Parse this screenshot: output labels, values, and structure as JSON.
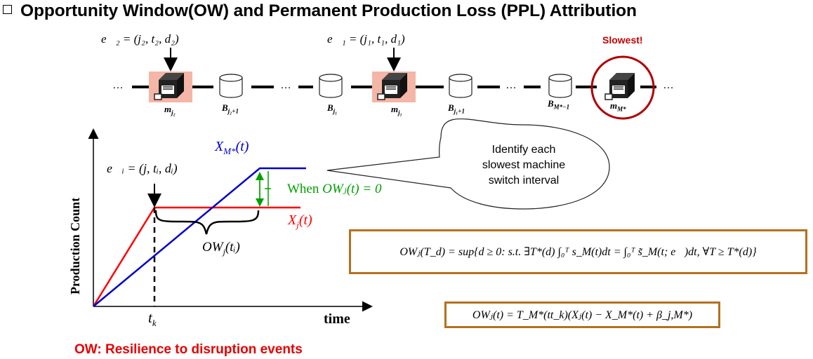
{
  "title": "Opportunity Window(OW) and Permanent Production Loss (PPL) Attribution",
  "line": {
    "event_e2": "e⃗₂ = (j₂, t₂, d₂)",
    "event_e1": "e⃗₁ = (j₁, t₁, d₁)",
    "slowest_label": "Slowest!",
    "ellipsis": "…",
    "labels": {
      "m_j2_base": "m",
      "m_j2_sub": "j₂",
      "b_j2p1_base": "B",
      "b_j2p1_sub": "j₂+1",
      "b_j1_base": "B",
      "b_j1_sub": "j₁",
      "m_j1_base": "m",
      "m_j1_sub": "j₁",
      "b_j1p1_base": "B",
      "b_j1p1_sub": "j₁+1",
      "b_mstar_base": "B",
      "b_mstar_sub": "M*−1",
      "m_mstar_base": "m",
      "m_mstar_sub": "M*"
    }
  },
  "plot": {
    "y_axis_label": "Production Count",
    "x_axis_label": "time",
    "tick_tk": "t",
    "tick_tk_sub": "k",
    "event_ei": "e⃗ᵢ = (j, tᵢ, dᵢ)",
    "series_xm": "X",
    "series_xm_sub": "M*",
    "series_xm_arg": "(t)",
    "series_xj": "X",
    "series_xj_sub": "j",
    "series_xj_arg": "(t)",
    "ow_ti": "OW",
    "ow_ti_sub": "j",
    "ow_ti_arg": "(tᵢ)",
    "when_text": "When ",
    "when_math": "OWⱼ(t) = 0",
    "colors": {
      "xm": "#0000cc",
      "xj": "#ff0000",
      "when": "#00a000"
    }
  },
  "bubble": {
    "line1": "Identify each",
    "line2": "slowest machine",
    "line3": "switch interval"
  },
  "formula1": "OWⱼ(T_d) = sup{d ≥ 0: s.t. ∃T*(d) ∫₀ᵀ s_M(t)dt = ∫₀ᵀ s̃_M(t; e⃗)dt, ∀T ≥ T*(d)}",
  "formula2": "OWⱼ(t) = T_M*(tt_k)(Xⱼ(t) − X_M*(t) + β_j,M*)",
  "footer": "OW: Resilience to disruption events",
  "colors": {
    "box_border": "#b5701e",
    "highlight": "#f4b6a6",
    "slowest_ring": "#b00000",
    "footer": "#e60000"
  }
}
